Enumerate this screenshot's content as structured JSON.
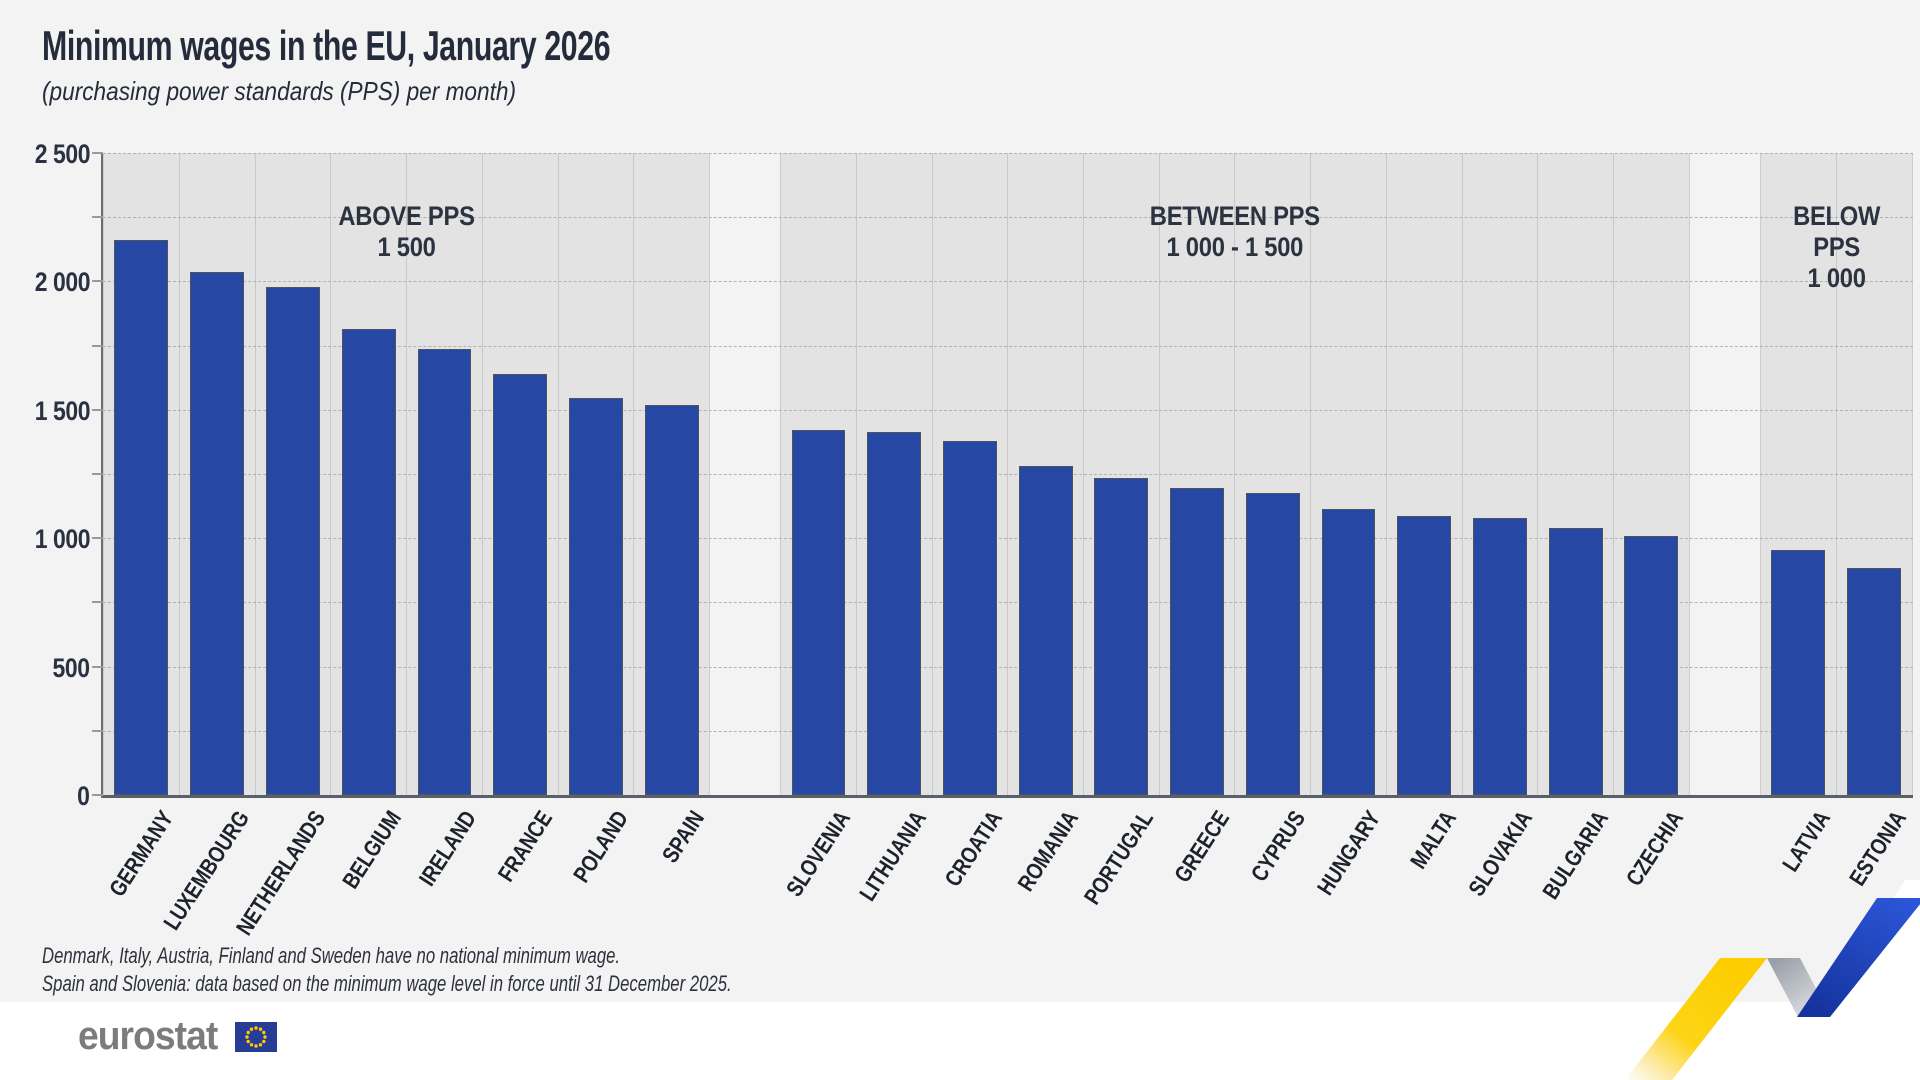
{
  "page": {
    "title": "Minimum wages in the EU, January 2026",
    "subtitle": "(purchasing power standards (PPS) per month)",
    "footnotes": [
      "Denmark, Italy, Austria, Finland and Sweden have no national minimum wage.",
      "Spain and Slovenia: data based on the minimum wage level in force until 31 December 2025."
    ],
    "logo_text": "eurostat"
  },
  "chart_data": {
    "type": "bar",
    "title": "Minimum wages in the EU, January 2026",
    "unit_note": "(purchasing power standards (PPS) per month)",
    "ylim": [
      0,
      2500
    ],
    "gridline_step": 250,
    "grid": "horizontal dashed every 250 PPS",
    "legend_position": "none",
    "ytick_labels": [
      {
        "value": 0,
        "label": "0"
      },
      {
        "value": 500,
        "label": "500"
      },
      {
        "value": 1000,
        "label": "1 000"
      },
      {
        "value": 1500,
        "label": "1 500"
      },
      {
        "value": 2000,
        "label": "2 000"
      },
      {
        "value": 2500,
        "label": "2 500"
      }
    ],
    "sections": [
      {
        "id": "above",
        "label_line1": "ABOVE PPS",
        "label_line2": "1 500",
        "items": [
          {
            "country": "GERMANY",
            "value": 2160
          },
          {
            "country": "LUXEMBOURG",
            "value": 2035
          },
          {
            "country": "NETHERLANDS",
            "value": 1980
          },
          {
            "country": "BELGIUM",
            "value": 1815
          },
          {
            "country": "IRELAND",
            "value": 1735
          },
          {
            "country": "FRANCE",
            "value": 1640
          },
          {
            "country": "POLAND",
            "value": 1545
          },
          {
            "country": "SPAIN",
            "value": 1520
          }
        ]
      },
      {
        "id": "between",
        "label_line1": "BETWEEN PPS",
        "label_line2": "1 000 - 1 500",
        "items": [
          {
            "country": "SLOVENIA",
            "value": 1420
          },
          {
            "country": "LITHUANIA",
            "value": 1415
          },
          {
            "country": "CROATIA",
            "value": 1380
          },
          {
            "country": "ROMANIA",
            "value": 1280
          },
          {
            "country": "PORTUGAL",
            "value": 1235
          },
          {
            "country": "GREECE",
            "value": 1195
          },
          {
            "country": "CYPRUS",
            "value": 1175
          },
          {
            "country": "HUNGARY",
            "value": 1115
          },
          {
            "country": "MALTA",
            "value": 1085
          },
          {
            "country": "SLOVAKIA",
            "value": 1080
          },
          {
            "country": "BULGARIA",
            "value": 1040
          },
          {
            "country": "CZECHIA",
            "value": 1010
          }
        ]
      },
      {
        "id": "below",
        "label_line1": "BELOW PPS",
        "label_line2": "1 000",
        "items": [
          {
            "country": "LATVIA",
            "value": 955
          },
          {
            "country": "ESTONIA",
            "value": 885
          }
        ]
      }
    ]
  },
  "colors": {
    "page_background": "#f3f3f3",
    "plot_column_background": "#e3e3e3",
    "bar": "#2747a5",
    "title_text": "#242b3a",
    "footer_background": "#ffffff",
    "logo_gray": "#7c7c7c",
    "eu_flag_blue": "#283c96",
    "eu_flag_stars": "#ffcc00",
    "ribbon_yellow": "#fcce00",
    "ribbon_blue": "#2048c8"
  }
}
